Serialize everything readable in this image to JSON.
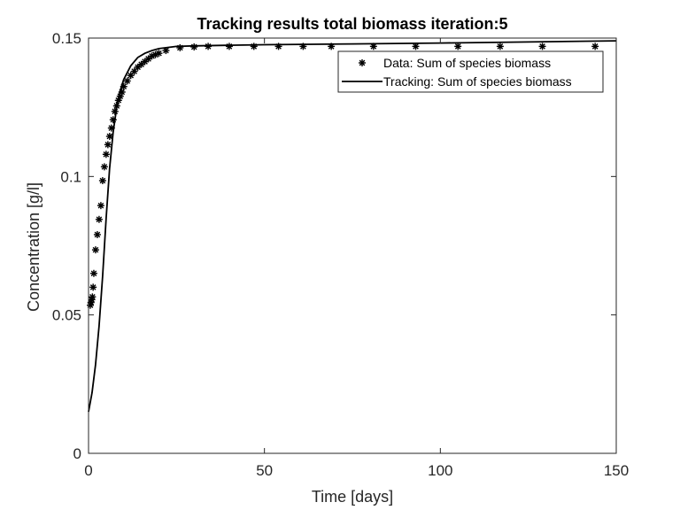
{
  "chart_data": {
    "type": "line",
    "title": "Tracking results total biomass iteration:5",
    "xlabel": "Time [days]",
    "ylabel": "Concentration [g/l]",
    "xlim": [
      0,
      150
    ],
    "ylim": [
      0,
      0.15
    ],
    "xticks": [
      0,
      50,
      100,
      150
    ],
    "yticks": [
      0,
      0.05,
      0.1,
      0.15
    ],
    "xtick_labels": [
      "0",
      "50",
      "100",
      "150"
    ],
    "ytick_labels": [
      "0",
      "0.05",
      "0.1",
      "0.15"
    ],
    "grid": false,
    "legend_position": "top-right",
    "series": [
      {
        "name": "Data: Sum of species biomass",
        "style": "markers",
        "marker": "asterisk",
        "color": "#000000",
        "x": [
          0.5,
          0.7,
          0.9,
          1.1,
          1.3,
          1.5,
          2.0,
          2.5,
          3.0,
          3.5,
          4.0,
          4.5,
          5.0,
          5.5,
          6.0,
          6.5,
          7.0,
          7.5,
          8.0,
          8.5,
          9.0,
          9.5,
          10.0,
          11.0,
          12.0,
          13.0,
          14.0,
          15.0,
          16.0,
          17.0,
          18.0,
          19.0,
          20.0,
          22.0,
          26.0,
          30.0,
          34.0,
          40.0,
          47.0,
          54.0,
          61.0,
          69.0,
          81.0,
          93.0,
          105.0,
          117.0,
          129.0,
          144.0
        ],
        "y": [
          0.0535,
          0.0545,
          0.0555,
          0.0565,
          0.06,
          0.065,
          0.0735,
          0.079,
          0.0845,
          0.0895,
          0.0985,
          0.1035,
          0.108,
          0.1115,
          0.1145,
          0.1175,
          0.1205,
          0.1235,
          0.1255,
          0.1275,
          0.129,
          0.1305,
          0.1325,
          0.1345,
          0.1365,
          0.138,
          0.1395,
          0.1405,
          0.1415,
          0.1425,
          0.1435,
          0.144,
          0.1445,
          0.1455,
          0.1465,
          0.1468,
          0.147,
          0.147,
          0.147,
          0.147,
          0.147,
          0.147,
          0.147,
          0.147,
          0.147,
          0.147,
          0.147,
          0.147
        ]
      },
      {
        "name": "Tracking: Sum of species biomass",
        "style": "line",
        "color": "#000000",
        "x": [
          0,
          1,
          2,
          3,
          4,
          5,
          6,
          7,
          8,
          9,
          10,
          12,
          14,
          16,
          18,
          20,
          25,
          30,
          40,
          50,
          75,
          100,
          125,
          150
        ],
        "y": [
          0.015,
          0.022,
          0.032,
          0.046,
          0.064,
          0.085,
          0.103,
          0.116,
          0.125,
          0.131,
          0.135,
          0.14,
          0.143,
          0.1445,
          0.1455,
          0.1462,
          0.147,
          0.1472,
          0.1474,
          0.1476,
          0.1479,
          0.1482,
          0.1486,
          0.149
        ]
      }
    ]
  }
}
